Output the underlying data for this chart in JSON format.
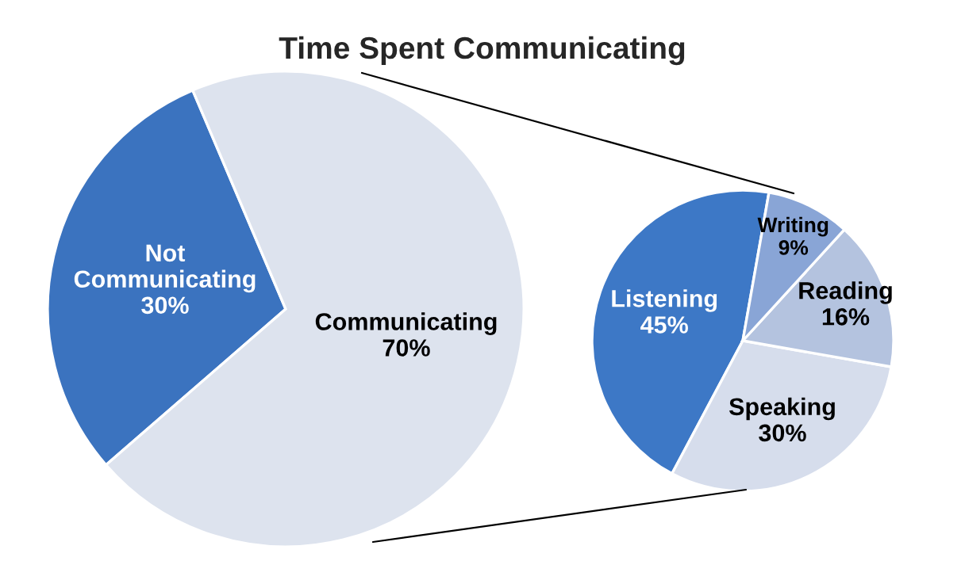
{
  "chart_data": [
    {
      "type": "pie",
      "title": "Time Spent Communicating",
      "categories": [
        "Not Communicating",
        "Communicating"
      ],
      "values": [
        30,
        70
      ],
      "value_labels": [
        "30%",
        "70%"
      ],
      "colors": [
        "#3b73bf",
        "#dde3ee"
      ]
    },
    {
      "type": "pie",
      "categories": [
        "Listening",
        "Speaking",
        "Reading",
        "Writing"
      ],
      "values": [
        45,
        30,
        16,
        9
      ],
      "value_labels": [
        "45%",
        "30%",
        "16%",
        "9%"
      ],
      "colors": [
        "#3d78c6",
        "#d6ddec",
        "#b4c3df",
        "#89a5d6"
      ]
    }
  ]
}
